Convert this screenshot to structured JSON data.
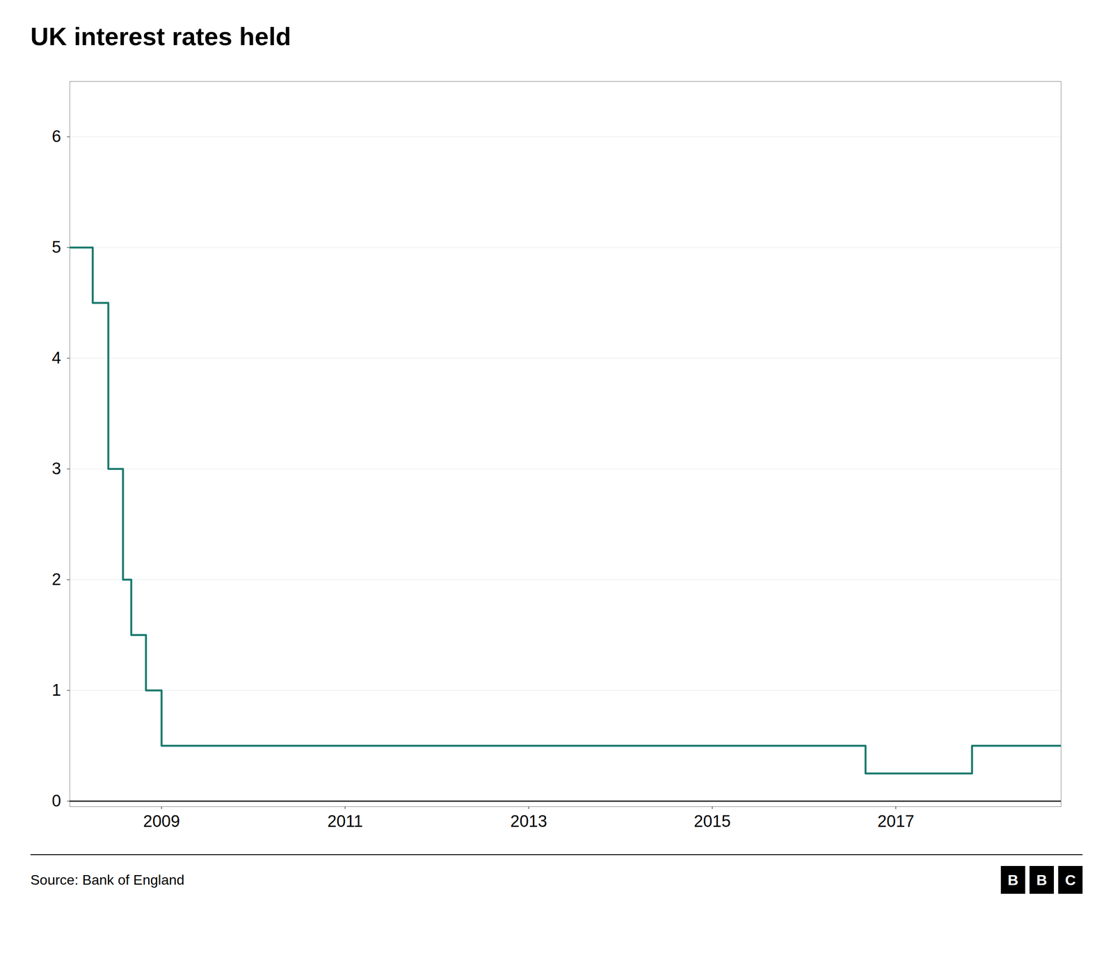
{
  "chart_data": {
    "type": "step",
    "title": "UK interest rates held",
    "source": "Source: Bank of England",
    "logo": "BBC",
    "color": "#1a7a6e",
    "x": [
      2008.0,
      2008.08,
      2008.25,
      2008.42,
      2008.58,
      2008.67,
      2008.75,
      2008.83,
      2008.92,
      2009.0,
      2009.08,
      2009.17,
      2009.25,
      2009.5,
      2010.0,
      2011.0,
      2012.0,
      2013.0,
      2014.0,
      2015.0,
      2015.5,
      2016.0,
      2016.5,
      2016.67,
      2017.0,
      2017.5,
      2017.83,
      2018.0,
      2018.5,
      2018.8
    ],
    "values": [
      5.0,
      5.0,
      4.5,
      3.0,
      2.0,
      1.5,
      1.5,
      1.0,
      1.0,
      0.5,
      0.5,
      0.5,
      0.5,
      0.5,
      0.5,
      0.5,
      0.5,
      0.5,
      0.5,
      0.5,
      0.5,
      0.5,
      0.5,
      0.25,
      0.25,
      0.25,
      0.5,
      0.5,
      0.5,
      0.5
    ],
    "xlim": [
      2008.0,
      2018.8
    ],
    "xticks": [
      2009,
      2011,
      2013,
      2015,
      2017
    ],
    "ylim": [
      -0.05,
      6.5
    ],
    "yticks": [
      0,
      1,
      2,
      3,
      4,
      5,
      6
    ],
    "grid": "y"
  }
}
